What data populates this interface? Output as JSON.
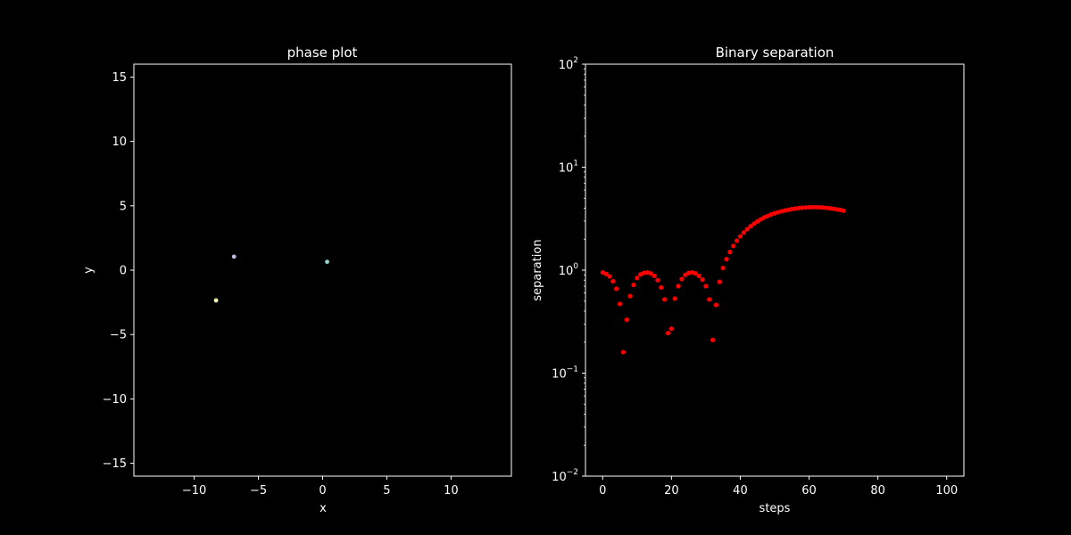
{
  "colors": {
    "background": "#000000",
    "foreground": "#ffffff",
    "separation_marker": "#ff0000"
  },
  "chart_data": [
    {
      "type": "scatter",
      "title": "phase plot",
      "xlabel": "x",
      "ylabel": "y",
      "xlim": [
        -14.7,
        14.7
      ],
      "ylim": [
        -16,
        16
      ],
      "xticks": [
        -10,
        -5,
        0,
        5,
        10
      ],
      "xtick_labels": [
        "−10",
        "−5",
        "0",
        "5",
        "10"
      ],
      "yticks": [
        -15,
        -10,
        -5,
        0,
        5,
        10,
        15
      ],
      "ytick_labels": [
        "−15",
        "−10",
        "−5",
        "0",
        "5",
        "10",
        "15"
      ],
      "grid": false,
      "points": [
        {
          "x": -6.9,
          "y": 1.05,
          "color": "#bebada"
        },
        {
          "x": 0.35,
          "y": 0.65,
          "color": "#8dd3c7"
        },
        {
          "x": -8.3,
          "y": -2.35,
          "color": "#ffffb3"
        }
      ]
    },
    {
      "type": "scatter",
      "title": "Binary separation",
      "xlabel": "steps",
      "ylabel": "separation",
      "yscale": "log",
      "xlim": [
        -5,
        105
      ],
      "ylim": [
        0.01,
        100
      ],
      "xticks": [
        0,
        20,
        40,
        60,
        80,
        100
      ],
      "xtick_labels": [
        "0",
        "20",
        "40",
        "60",
        "80",
        "100"
      ],
      "yticks": [
        0.01,
        0.1,
        1,
        10,
        100
      ],
      "ytick_labels": [
        "10",
        "10",
        "10",
        "10",
        "10"
      ],
      "ytick_exponents": [
        "−2",
        "−1",
        "0",
        "1",
        "2"
      ],
      "grid": false,
      "marker_color": "#ff0000",
      "x": [
        0,
        1,
        2,
        3,
        4,
        5,
        6,
        7,
        8,
        9,
        10,
        11,
        12,
        13,
        14,
        15,
        16,
        17,
        18,
        19,
        20,
        21,
        22,
        23,
        24,
        25,
        26,
        27,
        28,
        29,
        30,
        31,
        32,
        33,
        34,
        35,
        36,
        37,
        38,
        39,
        40,
        41,
        42,
        43,
        44,
        45,
        46,
        47,
        48,
        49,
        50,
        51,
        52,
        53,
        54,
        55,
        56,
        57,
        58,
        59,
        60,
        61,
        62,
        63,
        64,
        65,
        66,
        67,
        68,
        69,
        70
      ],
      "y": [
        0.95,
        0.92,
        0.87,
        0.78,
        0.66,
        0.47,
        0.16,
        0.33,
        0.56,
        0.72,
        0.84,
        0.91,
        0.94,
        0.95,
        0.93,
        0.88,
        0.8,
        0.68,
        0.52,
        0.245,
        0.27,
        0.53,
        0.7,
        0.82,
        0.9,
        0.94,
        0.95,
        0.93,
        0.88,
        0.81,
        0.7,
        0.52,
        0.21,
        0.46,
        0.77,
        1.05,
        1.28,
        1.5,
        1.72,
        1.93,
        2.13,
        2.32,
        2.5,
        2.67,
        2.83,
        2.98,
        3.12,
        3.25,
        3.36,
        3.47,
        3.57,
        3.65,
        3.73,
        3.8,
        3.86,
        3.92,
        3.97,
        4.01,
        4.04,
        4.06,
        4.08,
        4.09,
        4.09,
        4.08,
        4.06,
        4.03,
        3.99,
        3.95,
        3.9,
        3.85,
        3.78
      ]
    }
  ]
}
